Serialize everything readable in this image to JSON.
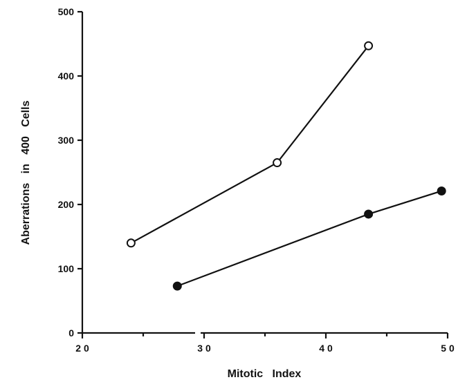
{
  "chart_data": {
    "type": "line",
    "title": "",
    "xlabel": "Mitotic   Index",
    "ylabel": "Aberrations   in   400   Cells",
    "xlim": [
      20,
      50
    ],
    "ylim": [
      0,
      500
    ],
    "xticks": [
      20,
      30,
      40,
      50
    ],
    "yticks": [
      0,
      100,
      200,
      300,
      400,
      500
    ],
    "xtick_labels": [
      "2 0",
      "3 0",
      "4 0",
      "5 0"
    ],
    "ytick_labels": [
      "0",
      "100",
      "200",
      "300",
      "400",
      "500"
    ],
    "grid": false,
    "legend": "none",
    "series": [
      {
        "marker": "open-circle",
        "x": [
          24,
          36,
          43.5
        ],
        "y": [
          140,
          265,
          447
        ]
      },
      {
        "marker": "filled-circle",
        "x": [
          27.8,
          43.5,
          49.5
        ],
        "y": [
          73,
          185,
          221
        ]
      }
    ]
  }
}
